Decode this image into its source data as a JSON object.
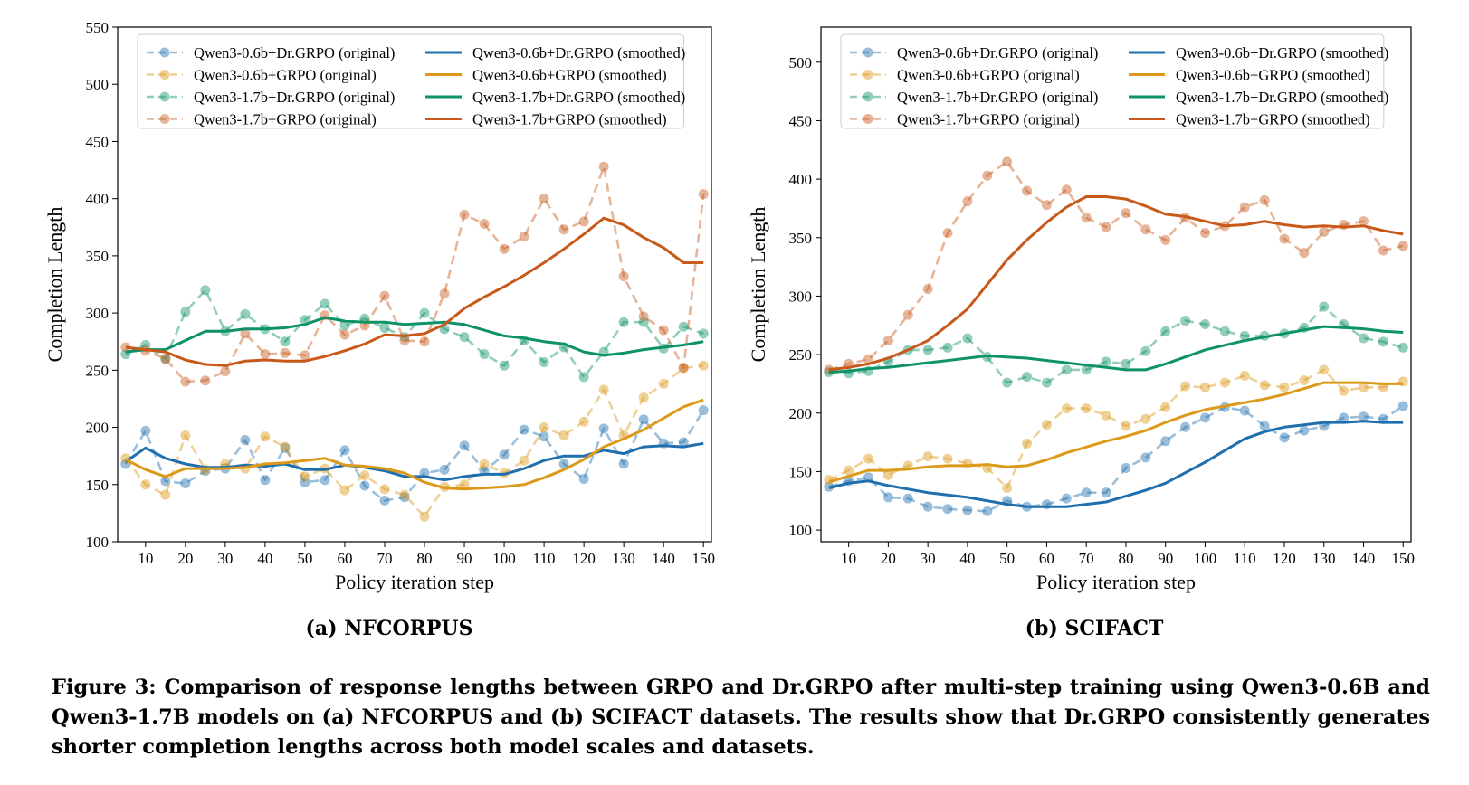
{
  "caption": {
    "label": "Figure 3:",
    "text": "Comparison of response lengths between GRPO and Dr.GRPO after multi-step training using Qwen3-0.6B and Qwen3-1.7B models on (a) NFCORPUS and (b) SCIFACT datasets. The results show that Dr.GRPO consistently generates shorter completion lengths across both model scales and datasets."
  },
  "colors": {
    "qwen06_drgrpo": "#1f6fae",
    "qwen06_grpo": "#dc9a1a",
    "qwen17_drgrpo": "#0e9267",
    "qwen17_grpo": "#c8591a"
  },
  "chart_data": [
    {
      "type": "line",
      "subtitle": "(a) NFCORPUS",
      "xlabel": "Policy iteration step",
      "ylabel": "Completion Length",
      "xlim": [
        3,
        152
      ],
      "ylim": [
        100,
        550
      ],
      "xticks": [
        10,
        20,
        30,
        40,
        50,
        60,
        70,
        80,
        90,
        100,
        110,
        120,
        130,
        140,
        150
      ],
      "yticks": [
        100,
        150,
        200,
        250,
        300,
        350,
        400,
        450,
        500,
        550
      ],
      "grid": false,
      "legend": "top, two columns",
      "x": [
        5,
        10,
        15,
        20,
        25,
        30,
        35,
        40,
        45,
        50,
        55,
        60,
        65,
        70,
        75,
        80,
        85,
        90,
        95,
        100,
        105,
        110,
        115,
        120,
        125,
        130,
        135,
        140,
        145,
        150
      ],
      "series": [
        {
          "name": "Qwen3-0.6b+Dr.GRPO (original)",
          "color_key": "qwen06_drgrpo",
          "style": "dashed-marker",
          "values": [
            168,
            197,
            153,
            151,
            162,
            164,
            189,
            154,
            182,
            152,
            154,
            180,
            149,
            136,
            139,
            160,
            163,
            184,
            162,
            176,
            198,
            192,
            168,
            155,
            199,
            168,
            207,
            186,
            187,
            215
          ]
        },
        {
          "name": "Qwen3-0.6b+GRPO (original)",
          "color_key": "qwen06_grpo",
          "style": "dashed-marker",
          "values": [
            173,
            150,
            141,
            193,
            163,
            168,
            164,
            192,
            183,
            157,
            164,
            145,
            158,
            146,
            141,
            122,
            148,
            150,
            168,
            160,
            171,
            200,
            193,
            205,
            233,
            193,
            226,
            238,
            252,
            254
          ]
        },
        {
          "name": "Qwen3-1.7b+Dr.GRPO (original)",
          "color_key": "qwen17_drgrpo",
          "style": "dashed-marker",
          "values": [
            264,
            272,
            260,
            301,
            320,
            284,
            299,
            286,
            275,
            294,
            308,
            289,
            295,
            287,
            279,
            300,
            286,
            279,
            264,
            254,
            276,
            257,
            270,
            244,
            266,
            292,
            292,
            269,
            288,
            282
          ]
        },
        {
          "name": "Qwen3-1.7b+GRPO (original)",
          "color_key": "qwen17_grpo",
          "style": "dashed-marker",
          "values": [
            270,
            267,
            260,
            240,
            241,
            249,
            282,
            264,
            265,
            263,
            298,
            281,
            289,
            315,
            276,
            275,
            317,
            386,
            378,
            356,
            367,
            400,
            373,
            380,
            428,
            332,
            297,
            285,
            252,
            404
          ]
        },
        {
          "name": "Qwen3-0.6b+Dr.GRPO (smoothed)",
          "color_key": "qwen06_drgrpo",
          "style": "solid",
          "values": [
            170,
            182,
            173,
            168,
            165,
            165,
            167,
            166,
            168,
            163,
            163,
            167,
            165,
            162,
            157,
            157,
            154,
            157,
            159,
            159,
            164,
            171,
            175,
            175,
            180,
            177,
            183,
            184,
            183,
            186
          ]
        },
        {
          "name": "Qwen3-0.6b+GRPO (smoothed)",
          "color_key": "qwen06_grpo",
          "style": "solid",
          "values": [
            172,
            163,
            157,
            164,
            164,
            164,
            165,
            168,
            169,
            171,
            173,
            167,
            166,
            164,
            160,
            152,
            147,
            146,
            147,
            148,
            150,
            156,
            163,
            172,
            183,
            190,
            198,
            208,
            218,
            224
          ]
        },
        {
          "name": "Qwen3-1.7b+Dr.GRPO (smoothed)",
          "color_key": "qwen17_drgrpo",
          "style": "solid",
          "values": [
            266,
            268,
            268,
            276,
            284,
            284,
            286,
            286,
            287,
            290,
            296,
            293,
            292,
            292,
            290,
            291,
            292,
            290,
            285,
            280,
            278,
            275,
            273,
            266,
            263,
            265,
            268,
            270,
            272,
            275
          ]
        },
        {
          "name": "Qwen3-1.7b+GRPO (smoothed)",
          "color_key": "qwen17_grpo",
          "style": "solid",
          "values": [
            270,
            268,
            266,
            259,
            255,
            254,
            258,
            259,
            258,
            258,
            262,
            267,
            273,
            281,
            280,
            282,
            290,
            304,
            314,
            323,
            333,
            344,
            356,
            369,
            383,
            377,
            366,
            357,
            344,
            344
          ]
        }
      ]
    },
    {
      "type": "line",
      "subtitle": "(b) SCIFACT",
      "xlabel": "Policy iteration step",
      "ylabel": "Completion Length",
      "xlim": [
        3,
        152
      ],
      "ylim": [
        90,
        530
      ],
      "xticks": [
        10,
        20,
        30,
        40,
        50,
        60,
        70,
        80,
        90,
        100,
        110,
        120,
        130,
        140,
        150
      ],
      "yticks": [
        100,
        150,
        200,
        250,
        300,
        350,
        400,
        450,
        500
      ],
      "grid": false,
      "legend": "top, two columns",
      "x": [
        5,
        10,
        15,
        20,
        25,
        30,
        35,
        40,
        45,
        50,
        55,
        60,
        65,
        70,
        75,
        80,
        85,
        90,
        95,
        100,
        105,
        110,
        115,
        120,
        125,
        130,
        135,
        140,
        145,
        150
      ],
      "series": [
        {
          "name": "Qwen3-0.6b+Dr.GRPO (original)",
          "color_key": "qwen06_drgrpo",
          "style": "dashed-marker",
          "values": [
            137,
            142,
            145,
            128,
            127,
            120,
            118,
            117,
            116,
            125,
            120,
            122,
            127,
            132,
            132,
            153,
            162,
            176,
            188,
            196,
            205,
            202,
            189,
            179,
            185,
            189,
            196,
            197,
            195,
            206
          ]
        },
        {
          "name": "Qwen3-0.6b+GRPO (original)",
          "color_key": "qwen06_grpo",
          "style": "dashed-marker",
          "values": [
            143,
            151,
            161,
            147,
            155,
            163,
            161,
            157,
            153,
            136,
            174,
            190,
            204,
            204,
            198,
            189,
            195,
            205,
            223,
            222,
            226,
            232,
            224,
            222,
            228,
            237,
            219,
            222,
            222,
            227
          ]
        },
        {
          "name": "Qwen3-1.7b+Dr.GRPO (original)",
          "color_key": "qwen17_drgrpo",
          "style": "dashed-marker",
          "values": [
            235,
            234,
            236,
            244,
            254,
            254,
            256,
            264,
            248,
            226,
            231,
            226,
            237,
            237,
            244,
            242,
            253,
            270,
            279,
            276,
            270,
            266,
            266,
            268,
            273,
            291,
            276,
            264,
            261,
            256
          ]
        },
        {
          "name": "Qwen3-1.7b+GRPO (original)",
          "color_key": "qwen17_grpo",
          "style": "dashed-marker",
          "values": [
            237,
            242,
            246,
            262,
            284,
            306,
            354,
            381,
            403,
            415,
            390,
            378,
            391,
            367,
            359,
            371,
            357,
            348,
            367,
            354,
            360,
            376,
            382,
            349,
            337,
            355,
            361,
            364,
            339,
            343
          ]
        },
        {
          "name": "Qwen3-0.6b+Dr.GRPO (smoothed)",
          "color_key": "qwen06_drgrpo",
          "style": "solid",
          "values": [
            136,
            140,
            142,
            138,
            135,
            132,
            130,
            128,
            125,
            122,
            120,
            120,
            120,
            122,
            124,
            129,
            134,
            140,
            149,
            158,
            168,
            178,
            184,
            188,
            190,
            192,
            192,
            193,
            192,
            192
          ]
        },
        {
          "name": "Qwen3-0.6b+GRPO (smoothed)",
          "color_key": "qwen06_grpo",
          "style": "solid",
          "values": [
            141,
            146,
            151,
            151,
            152,
            154,
            155,
            155,
            156,
            154,
            155,
            160,
            166,
            171,
            176,
            180,
            185,
            192,
            198,
            203,
            206,
            209,
            212,
            216,
            221,
            226,
            226,
            226,
            225,
            225
          ]
        },
        {
          "name": "Qwen3-1.7b+Dr.GRPO (smoothed)",
          "color_key": "qwen17_drgrpo",
          "style": "solid",
          "values": [
            235,
            236,
            238,
            239,
            241,
            243,
            245,
            247,
            249,
            248,
            247,
            245,
            243,
            241,
            239,
            237,
            237,
            242,
            248,
            254,
            258,
            262,
            265,
            268,
            271,
            274,
            273,
            272,
            270,
            269
          ]
        },
        {
          "name": "Qwen3-1.7b+GRPO (smoothed)",
          "color_key": "qwen17_grpo",
          "style": "solid",
          "values": [
            237,
            239,
            242,
            247,
            254,
            262,
            275,
            289,
            310,
            331,
            348,
            363,
            376,
            385,
            385,
            383,
            377,
            370,
            368,
            364,
            360,
            361,
            364,
            361,
            359,
            360,
            359,
            360,
            356,
            353
          ]
        }
      ]
    }
  ]
}
